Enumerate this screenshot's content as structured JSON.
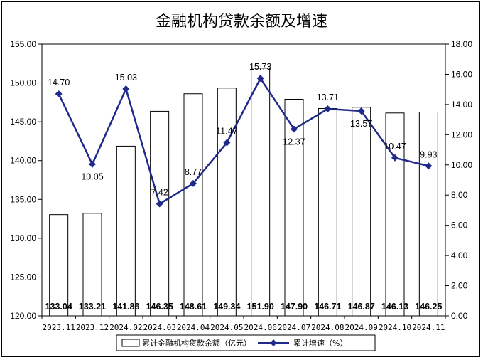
{
  "chart_data": {
    "type": "bar",
    "title": "金融机构贷款余额及增速",
    "categories": [
      "2023.11",
      "2023.12",
      "2024.02",
      "2024.03",
      "2024.04",
      "2024.05",
      "2024.06",
      "2024.07",
      "2024.08",
      "2024.09",
      "2024.10",
      "2024.11"
    ],
    "series": [
      {
        "name": "累计金融机构贷款余额（亿元）",
        "type": "bar",
        "axis": "left",
        "values": [
          133.04,
          133.21,
          141.86,
          146.35,
          148.61,
          149.34,
          151.9,
          147.9,
          146.71,
          146.87,
          146.13,
          146.25
        ],
        "labels": [
          "133.04",
          "133.21",
          "141.86",
          "146.35",
          "148.61",
          "149.34",
          "151.90",
          "147.90",
          "146.71",
          "146.87",
          "146.13",
          "146.25"
        ]
      },
      {
        "name": "累计增速（%）",
        "type": "line",
        "axis": "right",
        "values": [
          14.7,
          10.05,
          15.03,
          7.42,
          8.77,
          11.47,
          15.73,
          12.37,
          13.71,
          13.57,
          10.47,
          9.93
        ],
        "labels": [
          "14.70",
          "10.05",
          "15.03",
          "7.42",
          "8.77",
          "11.47",
          "15.73",
          "12.37",
          "13.71",
          "13.57",
          "10.47",
          "9.93"
        ]
      }
    ],
    "left_axis": {
      "ylim": [
        120,
        155
      ],
      "ticks": [
        "120.00",
        "125.00",
        "130.00",
        "135.00",
        "140.00",
        "145.00",
        "150.00",
        "155.00"
      ]
    },
    "right_axis": {
      "ylim": [
        0,
        18
      ],
      "ticks": [
        "0.00",
        "2.00",
        "4.00",
        "6.00",
        "8.00",
        "10.00",
        "12.00",
        "14.00",
        "16.00",
        "18.00"
      ]
    },
    "grid": false,
    "legend_position": "bottom",
    "colors": {
      "bar_fill": "#ffffff",
      "bar_stroke": "#000000",
      "line": "#1f2a8a"
    }
  }
}
